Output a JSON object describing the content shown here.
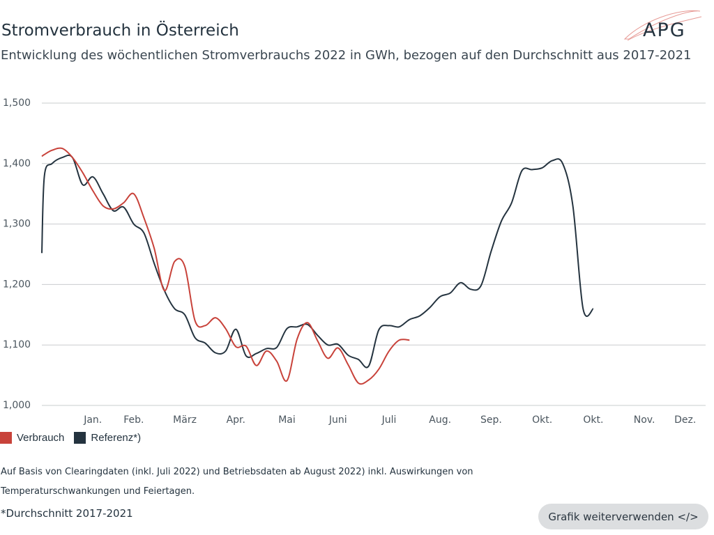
{
  "header": {
    "title": "Stromverbrauch in Österreich",
    "subtitle": "Entwicklung des wöchentlichen Stromverbrauchs 2022 in GWh, bezogen auf den Durchschnitt aus 2017-2021",
    "logo_text": "APG"
  },
  "colors": {
    "verbrauch": "#c8423a",
    "referenz": "#24333f",
    "grid": "#c9ccce"
  },
  "chart_data": {
    "type": "line",
    "title": "Stromverbrauch in Österreich",
    "subtitle": "Entwicklung des wöchentlichen Stromverbrauchs 2022 in GWh, bezogen auf den Durchschnitt aus 2017-2021",
    "xlabel": "",
    "ylabel": "",
    "ylim": [
      1000,
      1500
    ],
    "yticks": [
      1000,
      1100,
      1200,
      1300,
      1400,
      1500
    ],
    "ytick_labels": [
      "1,000",
      "1,100",
      "1,200",
      "1,300",
      "1,400",
      "1,500"
    ],
    "x_tick_labels": [
      "Jan.",
      "Feb.",
      "März",
      "Apr.",
      "Mai",
      "Juni",
      "Juli",
      "Aug.",
      "Sep.",
      "Okt.",
      "Okt.",
      "Nov.",
      "Dez."
    ],
    "x_tick_weeks": [
      5,
      9,
      14,
      19,
      24,
      29,
      34,
      39,
      44,
      49,
      54,
      59,
      63
    ],
    "xlim": [
      0,
      65
    ],
    "legend": "bottom-left",
    "grid": true,
    "series": [
      {
        "name": "Verbrauch",
        "x": [
          0,
          0.25,
          1,
          2,
          3,
          4,
          5,
          6,
          7,
          8,
          9,
          10,
          11,
          12,
          13,
          14,
          15,
          16,
          17,
          18,
          19,
          20,
          21,
          22,
          23,
          24,
          25,
          26,
          27,
          28,
          29,
          30,
          31,
          32,
          33,
          34,
          35,
          36,
          37,
          38,
          39,
          40,
          41
        ],
        "values": [
          1412,
          1415,
          1422,
          1425,
          1410,
          1385,
          1355,
          1330,
          1325,
          1335,
          1350,
          1310,
          1260,
          1190,
          1238,
          1230,
          1140,
          1132,
          1145,
          1127,
          1097,
          1098,
          1066,
          1090,
          1073,
          1041,
          1110,
          1137,
          1107,
          1078,
          1095,
          1067,
          1037,
          1042,
          1060,
          1090,
          1108,
          1108,
          1108,
          1108,
          1108,
          1108,
          1108
        ]
      },
      {
        "name": "Referenz*)",
        "x": [
          0,
          0.25,
          1,
          2,
          3,
          4,
          5,
          6,
          7,
          8,
          9,
          10,
          11,
          12,
          13,
          14,
          15,
          16,
          17,
          18,
          19,
          20,
          21,
          22,
          23,
          24,
          25,
          26,
          27,
          28,
          29,
          30,
          31,
          32,
          33,
          34,
          35,
          36,
          37,
          38,
          39,
          40,
          41,
          42,
          43,
          44,
          45,
          46,
          47,
          48,
          49,
          50,
          51,
          52,
          53,
          54,
          55,
          56,
          57,
          58,
          59,
          60,
          61,
          62,
          63,
          64,
          65
        ],
        "values": [
          1252,
          1380,
          1400,
          1410,
          1410,
          1365,
          1378,
          1350,
          1322,
          1328,
          1300,
          1285,
          1235,
          1190,
          1160,
          1150,
          1112,
          1103,
          1087,
          1090,
          1126,
          1082,
          1086,
          1094,
          1096,
          1127,
          1130,
          1134,
          1116,
          1100,
          1101,
          1083,
          1076,
          1065,
          1125,
          1132,
          1130,
          1142,
          1148,
          1162,
          1180,
          1186,
          1203,
          1192,
          1198,
          1255,
          1305,
          1335,
          1388,
          1390,
          1393,
          1405,
          1400,
          1330,
          1160,
          1160,
          1160,
          1160,
          1160,
          1160,
          1160,
          1160,
          1160,
          1160,
          1160,
          1160,
          1160
        ]
      }
    ]
  },
  "legend": {
    "verbrauch_label": "Verbrauch",
    "referenz_label": "Referenz*)"
  },
  "footer": {
    "note": "Auf Basis von Clearingdaten (inkl. Juli 2022) und Betriebsdaten ab August 2022) inkl. Auswirkungen von Temperaturschwankungen und Feiertagen.",
    "footnote": "*Durchschnitt 2017-2021",
    "button_label": "Grafik weiterverwenden </>"
  }
}
